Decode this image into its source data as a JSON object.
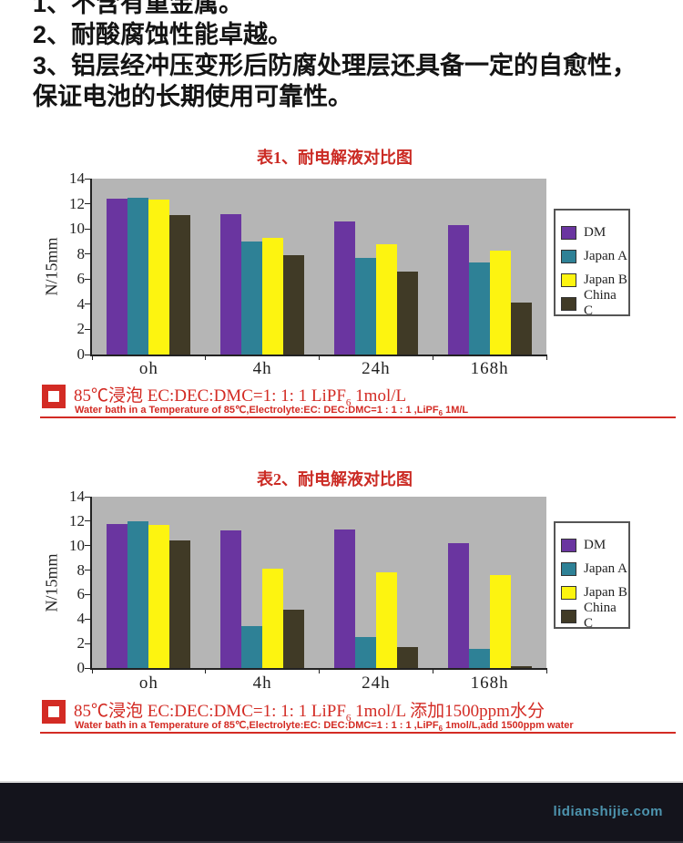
{
  "intro": {
    "lines": [
      "1、不含有重金属。",
      "2、耐酸腐蚀性能卓越。",
      "3、铝层经冲压变形后防腐处理层还具备一定的自愈性，",
      "保证电池的长期使用可靠性。"
    ]
  },
  "colors": {
    "accent_red": "#d32b24",
    "plot_background_gray": "#b5b5b5",
    "footer_background": "#14141c",
    "watermark_teal": "#4d94ae",
    "series_purple": "#6a35a0",
    "series_teal": "#2e8196",
    "series_yellow": "#fdf410",
    "series_olive": "#403a26"
  },
  "chart_data": [
    {
      "type": "bar",
      "title": "表1、耐电解液对比图",
      "ylabel": "N/15mm",
      "ymax": 14,
      "yticks": [
        0,
        2,
        4,
        6,
        8,
        10,
        12,
        14
      ],
      "grid": false,
      "legend_position": "right",
      "categories": [
        "oh",
        "4h",
        "24h",
        "168h"
      ],
      "series": [
        {
          "name": "DM",
          "color": "#6a35a0",
          "values": [
            12.4,
            11.15,
            10.6,
            10.3
          ]
        },
        {
          "name": "Japan A",
          "color": "#2e8196",
          "values": [
            12.45,
            9.0,
            7.7,
            7.3
          ]
        },
        {
          "name": "Japan B",
          "color": "#fdf410",
          "values": [
            12.3,
            9.3,
            8.8,
            8.3
          ]
        },
        {
          "name": "China C",
          "color": "#403a26",
          "values": [
            11.1,
            7.9,
            6.6,
            4.1
          ]
        }
      ],
      "note": {
        "cn_prefix": "85℃浸泡 EC:DEC:DMC=1: 1: 1 LiPF",
        "cn_sub": "6",
        "cn_suffix": " 1mol/L",
        "en_prefix": "Water bath in a Temperature of 85℃,Electrolyte:EC: DEC:DMC=1 : 1 : 1 ,LiPF",
        "en_sub": "6",
        "en_suffix": " 1M/L"
      }
    },
    {
      "type": "bar",
      "title": "表2、耐电解液对比图",
      "ylabel": "N/15mm",
      "ymax": 14,
      "yticks": [
        0,
        2,
        4,
        6,
        8,
        10,
        12,
        14
      ],
      "grid": false,
      "legend_position": "right",
      "categories": [
        "oh",
        "4h",
        "24h",
        "168h"
      ],
      "series": [
        {
          "name": "DM",
          "color": "#6a35a0",
          "values": [
            11.8,
            11.25,
            11.3,
            10.2
          ]
        },
        {
          "name": "Japan A",
          "color": "#2e8196",
          "values": [
            12.0,
            3.4,
            2.5,
            1.6
          ]
        },
        {
          "name": "Japan B",
          "color": "#fdf410",
          "values": [
            11.7,
            8.1,
            7.8,
            7.6
          ]
        },
        {
          "name": "China C",
          "color": "#403a26",
          "values": [
            10.4,
            4.8,
            1.7,
            0.15
          ]
        }
      ],
      "note": {
        "cn_prefix": "85℃浸泡 EC:DEC:DMC=1: 1: 1 LiPF",
        "cn_sub": "6",
        "cn_suffix": " 1mol/L 添加1500ppm水分",
        "en_prefix": "Water bath in a Temperature of 85℃,Electrolyte:EC: DEC:DMC=1 : 1 : 1 ,LiPF",
        "en_sub": "6",
        "en_suffix": " 1mol/L,add 1500ppm water"
      }
    }
  ],
  "footer": {
    "watermark": "lidianshijie.com"
  }
}
